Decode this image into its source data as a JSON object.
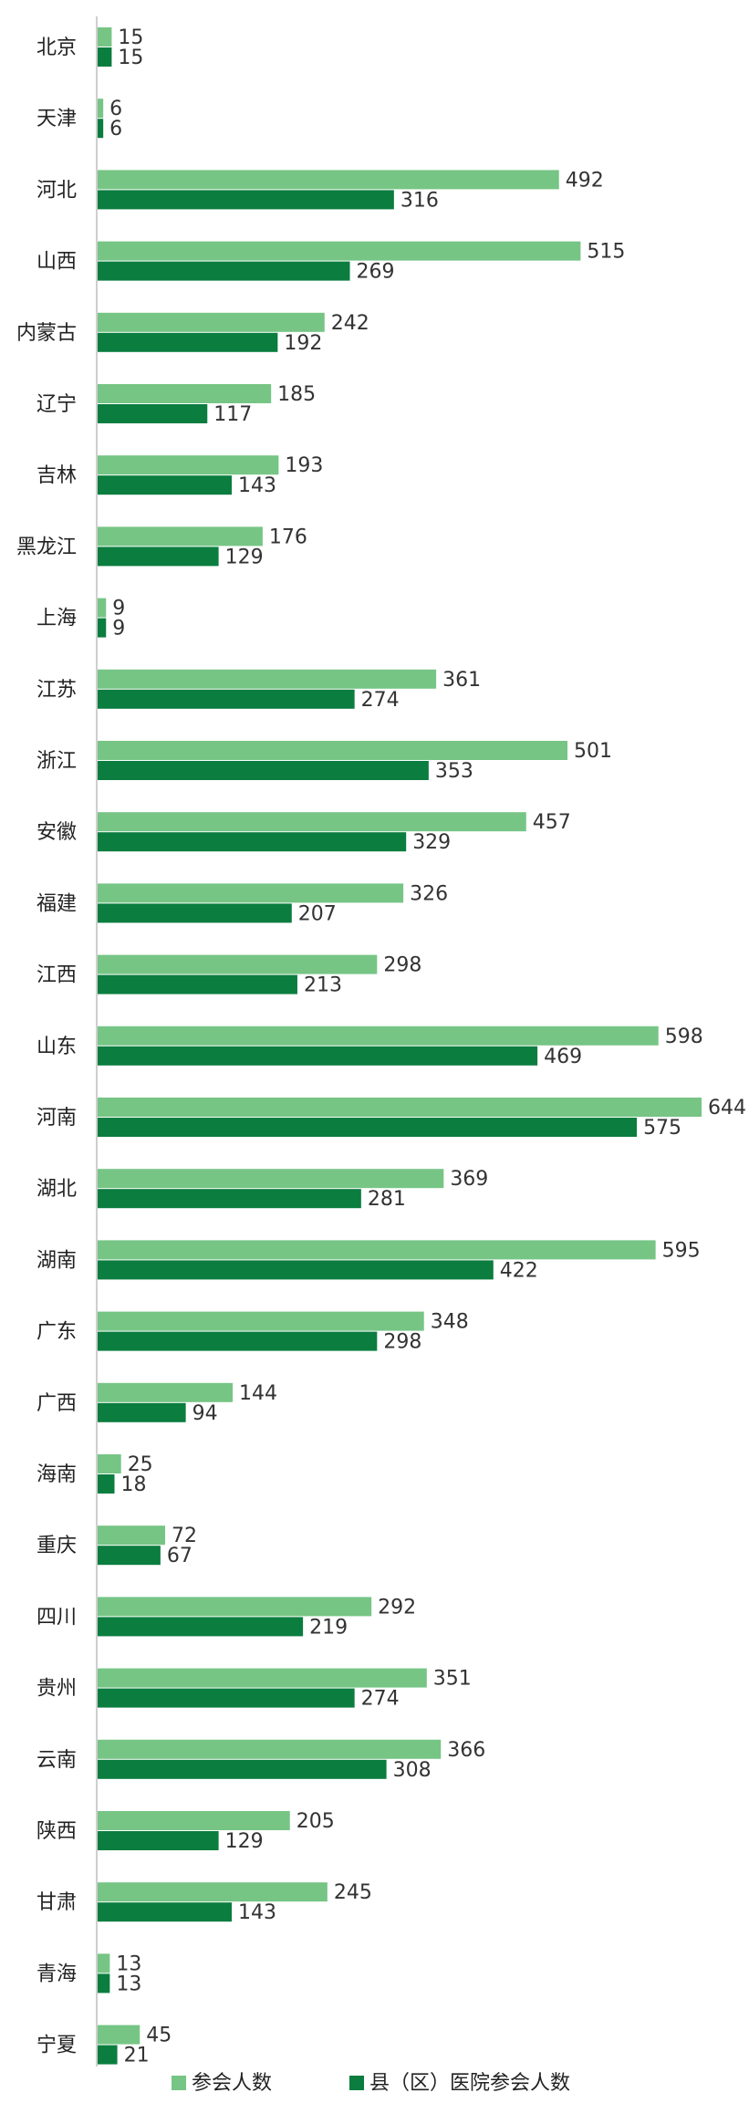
{
  "chart_data": {
    "type": "bar",
    "orientation": "horizontal",
    "categories": [
      "北京",
      "天津",
      "河北",
      "山西",
      "内蒙古",
      "辽宁",
      "吉林",
      "黑龙江",
      "上海",
      "江苏",
      "浙江",
      "安徽",
      "福建",
      "江西",
      "山东",
      "河南",
      "湖北",
      "湖南",
      "广东",
      "广西",
      "海南",
      "重庆",
      "四川",
      "贵州",
      "云南",
      "陕西",
      "甘肃",
      "青海",
      "宁夏"
    ],
    "series": [
      {
        "name": "参会人数",
        "color": "#76c585",
        "values": [
          15,
          6,
          492,
          515,
          242,
          185,
          193,
          176,
          9,
          361,
          501,
          457,
          326,
          298,
          598,
          644,
          369,
          595,
          348,
          144,
          25,
          72,
          292,
          351,
          366,
          205,
          245,
          13,
          45
        ]
      },
      {
        "name": "县（区）医院参会人数",
        "color": "#0a7d3f",
        "values": [
          15,
          6,
          316,
          269,
          192,
          117,
          143,
          129,
          9,
          274,
          353,
          329,
          207,
          213,
          469,
          575,
          281,
          422,
          298,
          94,
          18,
          67,
          219,
          274,
          308,
          129,
          143,
          13,
          21
        ]
      }
    ],
    "legend_position": "bottom",
    "grid": false,
    "xlim": [
      0,
      644
    ],
    "axis_color": "#bfbfbf"
  }
}
